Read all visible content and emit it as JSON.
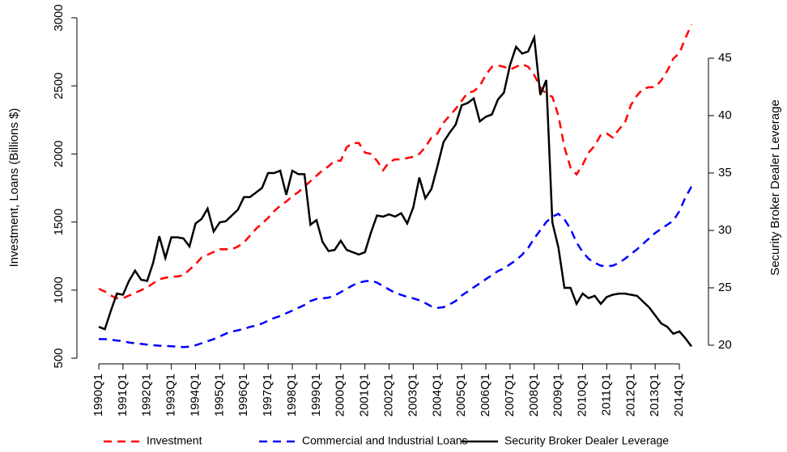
{
  "chart_data": {
    "type": "line",
    "y_label": "Investment, Loans (Billions $)",
    "y2_label": "Security Broker Dealer Leverage",
    "categories": [
      "1990Q1",
      null,
      null,
      null,
      "1991Q1",
      null,
      null,
      null,
      "1992Q1",
      null,
      null,
      null,
      "1993Q1",
      null,
      null,
      null,
      "1994Q1",
      null,
      null,
      null,
      "1995Q1",
      null,
      null,
      null,
      "1996Q1",
      null,
      null,
      null,
      "1997Q1",
      null,
      null,
      null,
      "1998Q1",
      null,
      null,
      null,
      "1999Q1",
      null,
      null,
      null,
      "2000Q1",
      null,
      null,
      null,
      "2001Q1",
      null,
      null,
      null,
      "2002Q1",
      null,
      null,
      null,
      "2003Q1",
      null,
      null,
      null,
      "2004Q1",
      null,
      null,
      null,
      "2005Q1",
      null,
      null,
      null,
      "2006Q1",
      null,
      null,
      null,
      "2007Q1",
      null,
      null,
      null,
      "2008Q1",
      null,
      null,
      null,
      "2009Q1",
      null,
      null,
      null,
      "2010Q1",
      null,
      null,
      null,
      "2011Q1",
      null,
      null,
      null,
      "2012Q1",
      null,
      null,
      null,
      "2013Q1",
      null,
      null,
      null,
      "2014Q1",
      null,
      null
    ],
    "ylim": [
      500,
      3000
    ],
    "yticks": [
      500,
      1000,
      1500,
      2000,
      2500,
      3000
    ],
    "y2lim": [
      18.87,
      48.52
    ],
    "y2ticks": [
      20,
      25,
      30,
      35,
      40,
      45
    ],
    "legend": "bottom",
    "series": [
      {
        "name": "Investment",
        "color": "#ff0000",
        "linestyle": "dashed",
        "values": [
          1010,
          990,
          960,
          940,
          940,
          960,
          980,
          1000,
          1020,
          1050,
          1080,
          1090,
          1100,
          1100,
          1110,
          1150,
          1190,
          1240,
          1260,
          1280,
          1300,
          1300,
          1300,
          1320,
          1350,
          1400,
          1450,
          1490,
          1530,
          1580,
          1620,
          1650,
          1690,
          1720,
          1760,
          1800,
          1840,
          1880,
          1910,
          1950,
          1950,
          2050,
          2080,
          2080,
          2010,
          2000,
          1950,
          1880,
          1940,
          1960,
          1960,
          1970,
          1980,
          2000,
          2050,
          2120,
          2150,
          2230,
          2280,
          2330,
          2390,
          2450,
          2460,
          2500,
          2580,
          2640,
          2650,
          2640,
          2620,
          2640,
          2660,
          2640,
          2580,
          2490,
          2440,
          2420,
          2280,
          2050,
          1900,
          1850,
          1920,
          2010,
          2060,
          2140,
          2150,
          2120,
          2180,
          2230,
          2360,
          2430,
          2480,
          2490,
          2490,
          2540,
          2610,
          2700,
          2740,
          2850,
          2950
        ]
      },
      {
        "name": "Commercial and Industrial Loans",
        "color": "#0000ff",
        "linestyle": "dashed",
        "values": [
          640,
          640,
          635,
          630,
          625,
          615,
          610,
          605,
          600,
          595,
          592,
          590,
          588,
          585,
          582,
          585,
          595,
          610,
          625,
          640,
          660,
          680,
          695,
          705,
          715,
          730,
          740,
          755,
          775,
          795,
          810,
          830,
          850,
          870,
          890,
          920,
          935,
          940,
          945,
          960,
          985,
          1010,
          1035,
          1055,
          1065,
          1070,
          1055,
          1030,
          1005,
          980,
          965,
          950,
          940,
          925,
          905,
          880,
          870,
          875,
          895,
          920,
          960,
          990,
          1020,
          1050,
          1080,
          1110,
          1140,
          1160,
          1190,
          1220,
          1260,
          1310,
          1380,
          1440,
          1500,
          1540,
          1560,
          1520,
          1450,
          1350,
          1280,
          1230,
          1200,
          1180,
          1175,
          1180,
          1200,
          1230,
          1265,
          1300,
          1340,
          1380,
          1420,
          1450,
          1480,
          1510,
          1580,
          1680,
          1760
        ]
      },
      {
        "name": "Security Broker Dealer Leverage",
        "color": "#000000",
        "linestyle": "solid",
        "axis": "y2",
        "values": [
          21.6,
          21.4,
          23.0,
          24.5,
          24.4,
          25.6,
          26.5,
          25.7,
          25.6,
          27.2,
          29.5,
          27.6,
          29.4,
          29.4,
          29.3,
          28.6,
          30.6,
          31.0,
          31.9,
          29.9,
          30.7,
          30.8,
          31.3,
          31.8,
          32.9,
          32.9,
          33.3,
          33.7,
          35.0,
          35.0,
          35.2,
          33.1,
          35.2,
          34.9,
          34.9,
          30.5,
          30.9,
          29.0,
          28.2,
          28.3,
          29.1,
          28.3,
          28.1,
          27.9,
          28.1,
          29.8,
          31.3,
          31.2,
          31.4,
          31.2,
          31.5,
          30.6,
          32.0,
          34.6,
          32.8,
          33.6,
          35.6,
          37.7,
          38.5,
          39.2,
          40.9,
          41.1,
          41.5,
          39.5,
          39.9,
          40.1,
          41.4,
          42.0,
          44.4,
          46.0,
          45.4,
          45.6,
          46.8,
          41.8,
          43.1,
          30.7,
          28.5,
          25.0,
          25.0,
          23.6,
          24.5,
          24.1,
          24.3,
          23.6,
          24.2,
          24.4,
          24.5,
          24.5,
          24.4,
          24.3,
          23.8,
          23.3,
          22.6,
          21.9,
          21.6,
          21.0,
          21.2,
          20.6,
          19.9
        ]
      }
    ]
  }
}
